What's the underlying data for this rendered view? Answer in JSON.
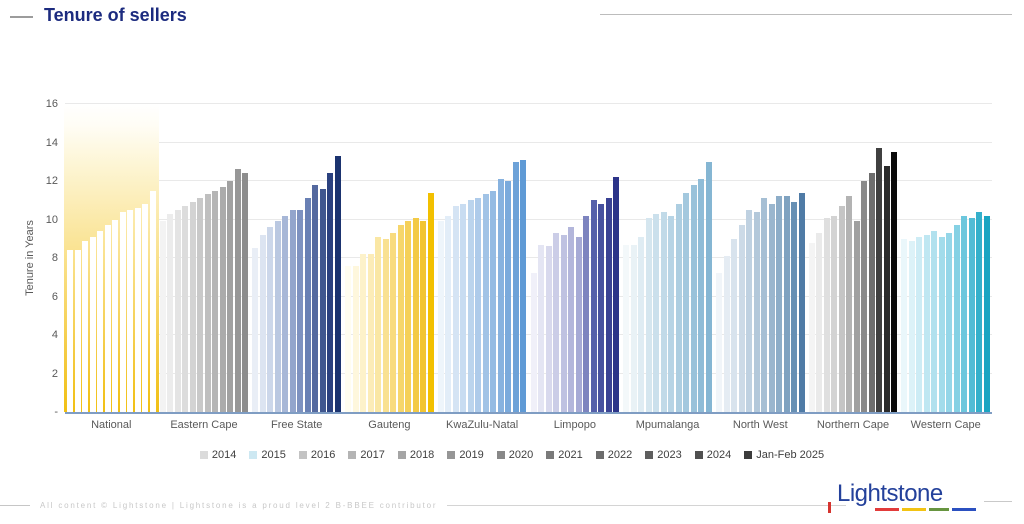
{
  "header": {
    "title": "Tenure of sellers"
  },
  "chart_data": {
    "type": "bar",
    "title": "Tenure of sellers",
    "xlabel": "",
    "ylabel": "Tenure in Years",
    "ylim": [
      0,
      16
    ],
    "grid": true,
    "legend_position": "bottom",
    "yticks": [
      {
        "value": 16,
        "label": "16"
      },
      {
        "value": 14,
        "label": "14"
      },
      {
        "value": 12,
        "label": "12"
      },
      {
        "value": 10,
        "label": "10"
      },
      {
        "value": 8,
        "label": "8"
      },
      {
        "value": 6,
        "label": "6"
      },
      {
        "value": 4,
        "label": "4"
      },
      {
        "value": 2,
        "label": "2"
      },
      {
        "value": 0,
        "label": "-"
      }
    ],
    "series_labels": [
      "2014",
      "2015",
      "2016",
      "2017",
      "2018",
      "2019",
      "2020",
      "2021",
      "2022",
      "2023",
      "2024",
      "Jan-Feb 2025"
    ],
    "legend": [
      {
        "label": "2014",
        "color": "#dbdbdb"
      },
      {
        "label": "2015",
        "color": "#cde8f2"
      },
      {
        "label": "2016",
        "color": "#c3c3c3"
      },
      {
        "label": "2017",
        "color": "#b4b4b4"
      },
      {
        "label": "2018",
        "color": "#a5a5a5"
      },
      {
        "label": "2019",
        "color": "#969696"
      },
      {
        "label": "2020",
        "color": "#888888"
      },
      {
        "label": "2021",
        "color": "#7a7a7a"
      },
      {
        "label": "2022",
        "color": "#6c6c6c"
      },
      {
        "label": "2023",
        "color": "#5e5e5e"
      },
      {
        "label": "2024",
        "color": "#505050"
      },
      {
        "label": "Jan-Feb 2025",
        "color": "#3c3c3c"
      }
    ],
    "groups": [
      {
        "label": "National",
        "highlight": true,
        "bar_color": "#ffffff",
        "highlight_gradient": [
          "#f1c013",
          "#fffdf5"
        ],
        "values": [
          8.4,
          8.4,
          8.9,
          9.1,
          9.4,
          9.7,
          10.0,
          10.4,
          10.5,
          10.6,
          10.8,
          11.5
        ]
      },
      {
        "label": "Eastern Cape",
        "highlight": false,
        "colors": [
          "#f3f3f3",
          "#ececec",
          "#e4e4e4",
          "#dcdcdc",
          "#d3d3d3",
          "#c9c9c9",
          "#bfbfbf",
          "#b5b5b5",
          "#ababab",
          "#a1a1a1",
          "#979797",
          "#8d8d8d"
        ],
        "values": [
          9.9,
          10.3,
          10.5,
          10.7,
          10.9,
          11.1,
          11.3,
          11.5,
          11.7,
          12.0,
          12.6,
          12.4
        ]
      },
      {
        "label": "Free State",
        "highlight": false,
        "colors": [
          "#e9eef6",
          "#dce4f1",
          "#ccd7ea",
          "#bac8e1",
          "#a7b7d7",
          "#93a5cc",
          "#7e92c0",
          "#6980b4",
          "#54699f",
          "#40578f",
          "#2b417f",
          "#1b336f"
        ],
        "values": [
          8.5,
          9.2,
          9.6,
          9.9,
          10.2,
          10.5,
          10.5,
          11.1,
          11.8,
          11.6,
          12.4,
          13.3
        ]
      },
      {
        "label": "Gauteng",
        "highlight": false,
        "colors": [
          "#fffdf0",
          "#fef7dd",
          "#fdf2ca",
          "#fcecb7",
          "#fae7a4",
          "#f9e191",
          "#f8db7e",
          "#f6d66b",
          "#f5d058",
          "#f3ca45",
          "#f2c532",
          "#f2c000"
        ],
        "values": [
          7.6,
          7.6,
          8.2,
          8.2,
          9.1,
          9.0,
          9.3,
          9.7,
          9.9,
          10.1,
          9.9,
          11.4
        ]
      },
      {
        "label": "KwaZulu-Natal",
        "highlight": false,
        "colors": [
          "#eef5fb",
          "#e2edf8",
          "#d5e4f4",
          "#c8dcf1",
          "#bbd4ed",
          "#aecbea",
          "#a1c3e6",
          "#94bbe3",
          "#87b2df",
          "#7aaadc",
          "#6da2d8",
          "#5f9ad5"
        ],
        "values": [
          9.9,
          10.2,
          10.7,
          10.8,
          11.0,
          11.1,
          11.3,
          11.5,
          12.1,
          12.0,
          13.0,
          13.1
        ]
      },
      {
        "label": "Limpopo",
        "highlight": false,
        "colors": [
          "#f0f0f9",
          "#e4e5f3",
          "#d8d9ed",
          "#cbcde7",
          "#bfc2e1",
          "#b3b6db",
          "#a6aad5",
          "#7d84bf",
          "#5560aa",
          "#47519f",
          "#3a4294",
          "#2c3489"
        ],
        "values": [
          7.2,
          8.7,
          8.6,
          9.3,
          9.2,
          9.6,
          9.1,
          10.2,
          11.0,
          10.8,
          11.1,
          12.2
        ]
      },
      {
        "label": "Mpumalanga",
        "highlight": false,
        "colors": [
          "#f3f8fa",
          "#e9f2f6",
          "#dfecf3",
          "#d5e6ef",
          "#cbe0ec",
          "#c1dae8",
          "#b7d4e5",
          "#adcee1",
          "#a3c8de",
          "#99c2da",
          "#8fbcd7",
          "#85b6d3"
        ],
        "values": [
          8.7,
          8.7,
          9.1,
          10.1,
          10.3,
          10.4,
          10.2,
          10.8,
          11.4,
          11.8,
          12.1,
          13.0
        ]
      },
      {
        "label": "North West",
        "highlight": false,
        "colors": [
          "#f1f5f9",
          "#e5ecf3",
          "#d8e3ed",
          "#ccdae7",
          "#bfd1e1",
          "#b3c8da",
          "#a6bfd4",
          "#9ab6ce",
          "#8dadc8",
          "#7fa2c0",
          "#6790b4",
          "#4f7ba6"
        ],
        "values": [
          7.2,
          8.1,
          9.0,
          9.7,
          10.5,
          10.4,
          11.1,
          10.8,
          11.2,
          11.2,
          10.9,
          11.4
        ]
      },
      {
        "label": "Northern Cape",
        "highlight": false,
        "colors": [
          "#f4f4f4",
          "#eaeaea",
          "#dfdfdf",
          "#d3d3d3",
          "#c5c5c5",
          "#b3b3b3",
          "#a0a0a0",
          "#898989",
          "#6e6e6e",
          "#404040",
          "#2b2b2b",
          "#0a0a0a"
        ],
        "values": [
          8.8,
          9.3,
          10.1,
          10.2,
          10.7,
          11.2,
          9.9,
          12.0,
          12.4,
          13.7,
          12.8,
          13.5
        ]
      },
      {
        "label": "Western Cape",
        "highlight": false,
        "colors": [
          "#eaf7fb",
          "#dcf2f8",
          "#cdecf5",
          "#bfe7f2",
          "#b1e1ee",
          "#a2dceb",
          "#94d6e8",
          "#85d1e4",
          "#6cc7dd",
          "#52bcd5",
          "#35b0cb",
          "#1aa5c2"
        ],
        "values": [
          9.0,
          8.9,
          9.1,
          9.2,
          9.4,
          9.1,
          9.3,
          9.7,
          10.2,
          10.1,
          10.4,
          10.2
        ]
      }
    ]
  },
  "footer": {
    "text": "All content © Lightstone   |   Lightstone is a proud level 2 B-BBEE contributor"
  },
  "logo": {
    "text": "Lightstone",
    "underline_colors": [
      "#e23b3a",
      "#f2c313",
      "#679540",
      "#2b50c0"
    ],
    "brand_blue": "#24419b"
  }
}
